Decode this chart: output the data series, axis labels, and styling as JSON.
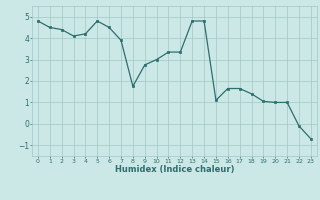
{
  "x": [
    0,
    1,
    2,
    3,
    4,
    5,
    6,
    7,
    8,
    9,
    10,
    11,
    12,
    13,
    14,
    15,
    16,
    17,
    18,
    19,
    20,
    21,
    22,
    23
  ],
  "y": [
    4.8,
    4.5,
    4.4,
    4.1,
    4.2,
    4.8,
    4.5,
    3.9,
    1.75,
    2.75,
    3.0,
    3.35,
    3.35,
    4.8,
    4.8,
    1.1,
    1.65,
    1.65,
    1.4,
    1.05,
    1.0,
    1.0,
    -0.1,
    -0.7
  ],
  "xlabel": "Humidex (Indice chaleur)",
  "ylim": [
    -1.5,
    5.5
  ],
  "yticks": [
    -1,
    0,
    1,
    2,
    3,
    4,
    5
  ],
  "xticks": [
    0,
    1,
    2,
    3,
    4,
    5,
    6,
    7,
    8,
    9,
    10,
    11,
    12,
    13,
    14,
    15,
    16,
    17,
    18,
    19,
    20,
    21,
    22,
    23
  ],
  "line_color": "#2d6e6e",
  "marker_color": "#2d6e6e",
  "bg_color": "#cce8e6",
  "grid_color": "#a0c8c4",
  "text_color": "#2d6e6e"
}
